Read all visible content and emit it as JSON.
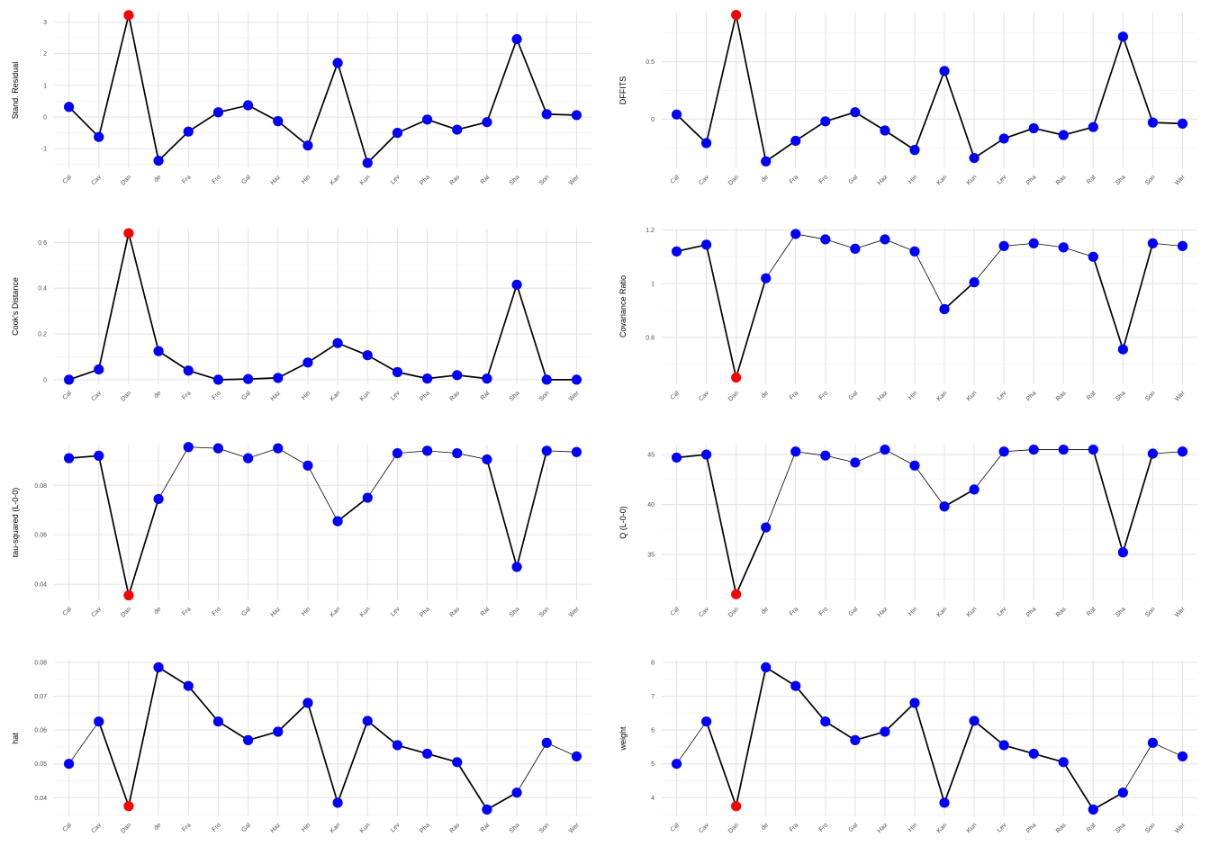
{
  "studies": [
    "Cal",
    "Cav",
    "Dan",
    "de",
    "Fra",
    "Fro",
    "Gal",
    "Haz",
    "Hin",
    "Kan",
    "Kun",
    "Lev",
    "Pha",
    "Ras",
    "Rat",
    "Sha",
    "Son",
    "Wer"
  ],
  "colors": {
    "normal": "#0000ff",
    "influential": "#ff0000",
    "line": "#000000",
    "grid": "#e4e4e4"
  },
  "chart_data": [
    {
      "type": "line",
      "ylabel": "Stand. Residual",
      "y_ticks": [
        -1,
        0,
        1,
        2,
        3
      ],
      "ylim": [
        -1.62,
        3.3
      ],
      "values": [
        0.32,
        -0.63,
        3.22,
        -1.38,
        -0.46,
        0.15,
        0.37,
        -0.13,
        -0.9,
        1.71,
        -1.45,
        -0.5,
        -0.08,
        -0.4,
        -0.16,
        2.46,
        0.09,
        0.06
      ],
      "influential": [
        false,
        false,
        true,
        false,
        false,
        false,
        false,
        false,
        false,
        false,
        false,
        false,
        false,
        false,
        false,
        false,
        false,
        false
      ]
    },
    {
      "type": "line",
      "ylabel": "DFFITS",
      "y_ticks": [
        0.0,
        0.5
      ],
      "ylim": [
        -0.43,
        0.93
      ],
      "values": [
        0.04,
        -0.21,
        0.91,
        -0.37,
        -0.19,
        -0.02,
        0.06,
        -0.1,
        -0.27,
        0.42,
        -0.34,
        -0.17,
        -0.08,
        -0.14,
        -0.07,
        0.72,
        -0.03,
        -0.04
      ],
      "influential": [
        false,
        false,
        true,
        false,
        false,
        false,
        false,
        false,
        false,
        false,
        false,
        false,
        false,
        false,
        false,
        false,
        false,
        false
      ]
    },
    {
      "type": "line",
      "ylabel": "Cook's Distance",
      "y_ticks": [
        0.0,
        0.2,
        0.4,
        0.6
      ],
      "ylim": [
        -0.02,
        0.66
      ],
      "values": [
        0.0,
        0.045,
        0.64,
        0.125,
        0.04,
        0.0,
        0.003,
        0.008,
        0.075,
        0.16,
        0.107,
        0.033,
        0.005,
        0.02,
        0.005,
        0.415,
        0.0,
        0.0
      ],
      "influential": [
        false,
        false,
        true,
        false,
        false,
        false,
        false,
        false,
        false,
        false,
        false,
        false,
        false,
        false,
        false,
        false,
        false,
        false
      ]
    },
    {
      "type": "line",
      "ylabel": "Covariance Ratio",
      "y_ticks": [
        0.8,
        1.0,
        1.2
      ],
      "ylim": [
        0.625,
        1.205
      ],
      "values": [
        1.12,
        1.145,
        0.65,
        1.02,
        1.185,
        1.165,
        1.13,
        1.165,
        1.12,
        0.905,
        1.005,
        1.14,
        1.15,
        1.135,
        1.1,
        0.755,
        1.15,
        1.14
      ],
      "influential": [
        false,
        false,
        true,
        false,
        false,
        false,
        false,
        false,
        false,
        false,
        false,
        false,
        false,
        false,
        false,
        false,
        false,
        false
      ]
    },
    {
      "type": "line",
      "ylabel": "tau-squared (L-0-0)",
      "y_ticks": [
        0.04,
        0.06,
        0.08
      ],
      "ylim": [
        0.0335,
        0.0965
      ],
      "values": [
        0.091,
        0.092,
        0.0355,
        0.0745,
        0.0955,
        0.095,
        0.091,
        0.095,
        0.088,
        0.0655,
        0.075,
        0.093,
        0.094,
        0.093,
        0.0905,
        0.047,
        0.094,
        0.0935
      ],
      "influential": [
        false,
        false,
        true,
        false,
        false,
        false,
        false,
        false,
        false,
        false,
        false,
        false,
        false,
        false,
        false,
        false,
        false,
        false
      ]
    },
    {
      "type": "line",
      "ylabel": "Q (L-0-0)",
      "y_ticks": [
        35,
        40,
        45
      ],
      "ylim": [
        30.4,
        46.0
      ],
      "values": [
        44.7,
        45.0,
        31.0,
        37.7,
        45.3,
        44.9,
        44.2,
        45.5,
        43.9,
        39.8,
        41.5,
        45.3,
        45.5,
        45.5,
        45.5,
        35.2,
        45.1,
        45.3
      ],
      "influential": [
        false,
        false,
        true,
        false,
        false,
        false,
        false,
        false,
        false,
        false,
        false,
        false,
        false,
        false,
        false,
        false,
        false,
        false
      ]
    },
    {
      "type": "line",
      "ylabel": "hat",
      "y_ticks": [
        0.04,
        0.05,
        0.06,
        0.07,
        0.08
      ],
      "ylim": [
        0.0345,
        0.0805
      ],
      "values": [
        0.05,
        0.0625,
        0.0375,
        0.0785,
        0.073,
        0.0625,
        0.057,
        0.0595,
        0.068,
        0.0385,
        0.0627,
        0.0555,
        0.053,
        0.0505,
        0.0365,
        0.0415,
        0.0562,
        0.0522
      ],
      "influential": [
        false,
        false,
        true,
        false,
        false,
        false,
        false,
        false,
        false,
        false,
        false,
        false,
        false,
        false,
        false,
        false,
        false,
        false
      ]
    },
    {
      "type": "line",
      "ylabel": "weight",
      "y_ticks": [
        4,
        5,
        6,
        7,
        8
      ],
      "ylim": [
        3.45,
        8.05
      ],
      "values": [
        5.0,
        6.25,
        3.75,
        7.85,
        7.3,
        6.25,
        5.7,
        5.95,
        6.8,
        3.85,
        6.27,
        5.55,
        5.3,
        5.05,
        3.65,
        4.15,
        5.62,
        5.22
      ],
      "influential": [
        false,
        false,
        true,
        false,
        false,
        false,
        false,
        false,
        false,
        false,
        false,
        false,
        false,
        false,
        false,
        false,
        false,
        false
      ]
    }
  ]
}
